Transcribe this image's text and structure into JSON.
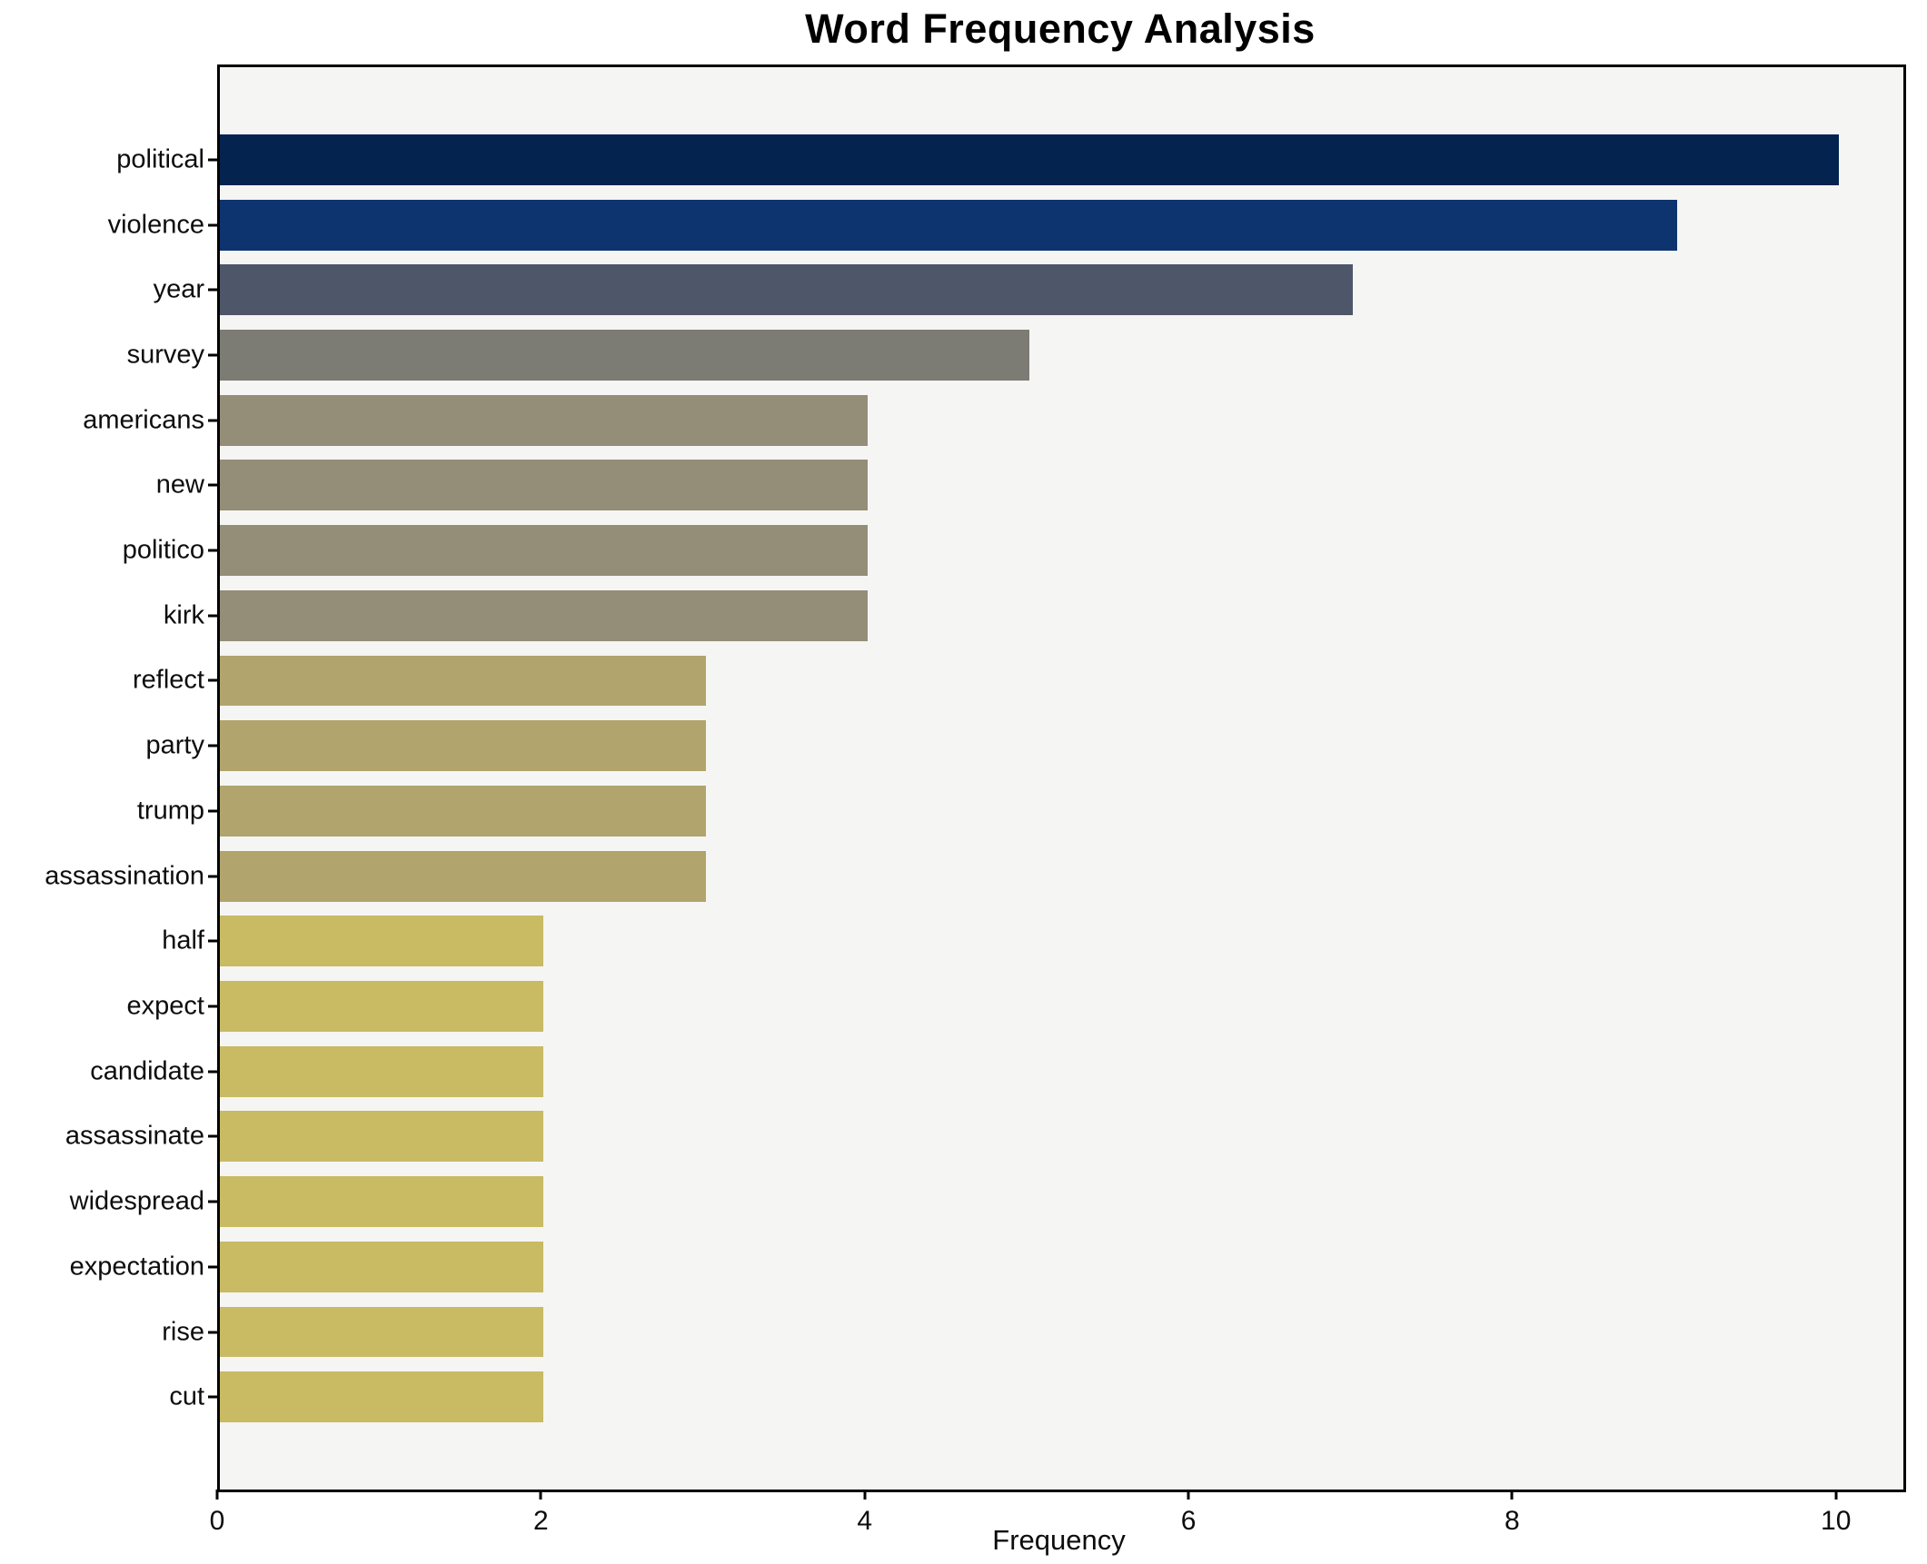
{
  "title": "Word Frequency Analysis",
  "chart_data": {
    "type": "bar",
    "orientation": "horizontal",
    "title": "Word Frequency Analysis",
    "xlabel": "Frequency",
    "ylabel": "",
    "categories": [
      "political",
      "violence",
      "year",
      "survey",
      "americans",
      "new",
      "politico",
      "kirk",
      "reflect",
      "party",
      "trump",
      "assassination",
      "half",
      "expect",
      "candidate",
      "assassinate",
      "widespread",
      "expectation",
      "rise",
      "cut"
    ],
    "values": [
      10,
      9,
      7,
      5,
      4,
      4,
      4,
      4,
      3,
      3,
      3,
      3,
      2,
      2,
      2,
      2,
      2,
      2,
      2,
      2
    ],
    "bar_colors": [
      "#04234f",
      "#0e346f",
      "#4e5669",
      "#7c7b74",
      "#948d77",
      "#948d77",
      "#948d77",
      "#948d77",
      "#b1a46c",
      "#b1a46c",
      "#b1a46c",
      "#b1a46c",
      "#c9ba64",
      "#c9ba64",
      "#c9ba64",
      "#c9ba64",
      "#c9ba64",
      "#c9ba64",
      "#c9ba64",
      "#c9ba64"
    ],
    "x_ticks": [
      0,
      2,
      4,
      6,
      8,
      10
    ],
    "xlim": [
      0,
      10.4
    ],
    "grid": false,
    "legend": null,
    "plot_background": "#f5f5f3",
    "figure_background": "#ffffff",
    "spine_color": "#000000"
  }
}
